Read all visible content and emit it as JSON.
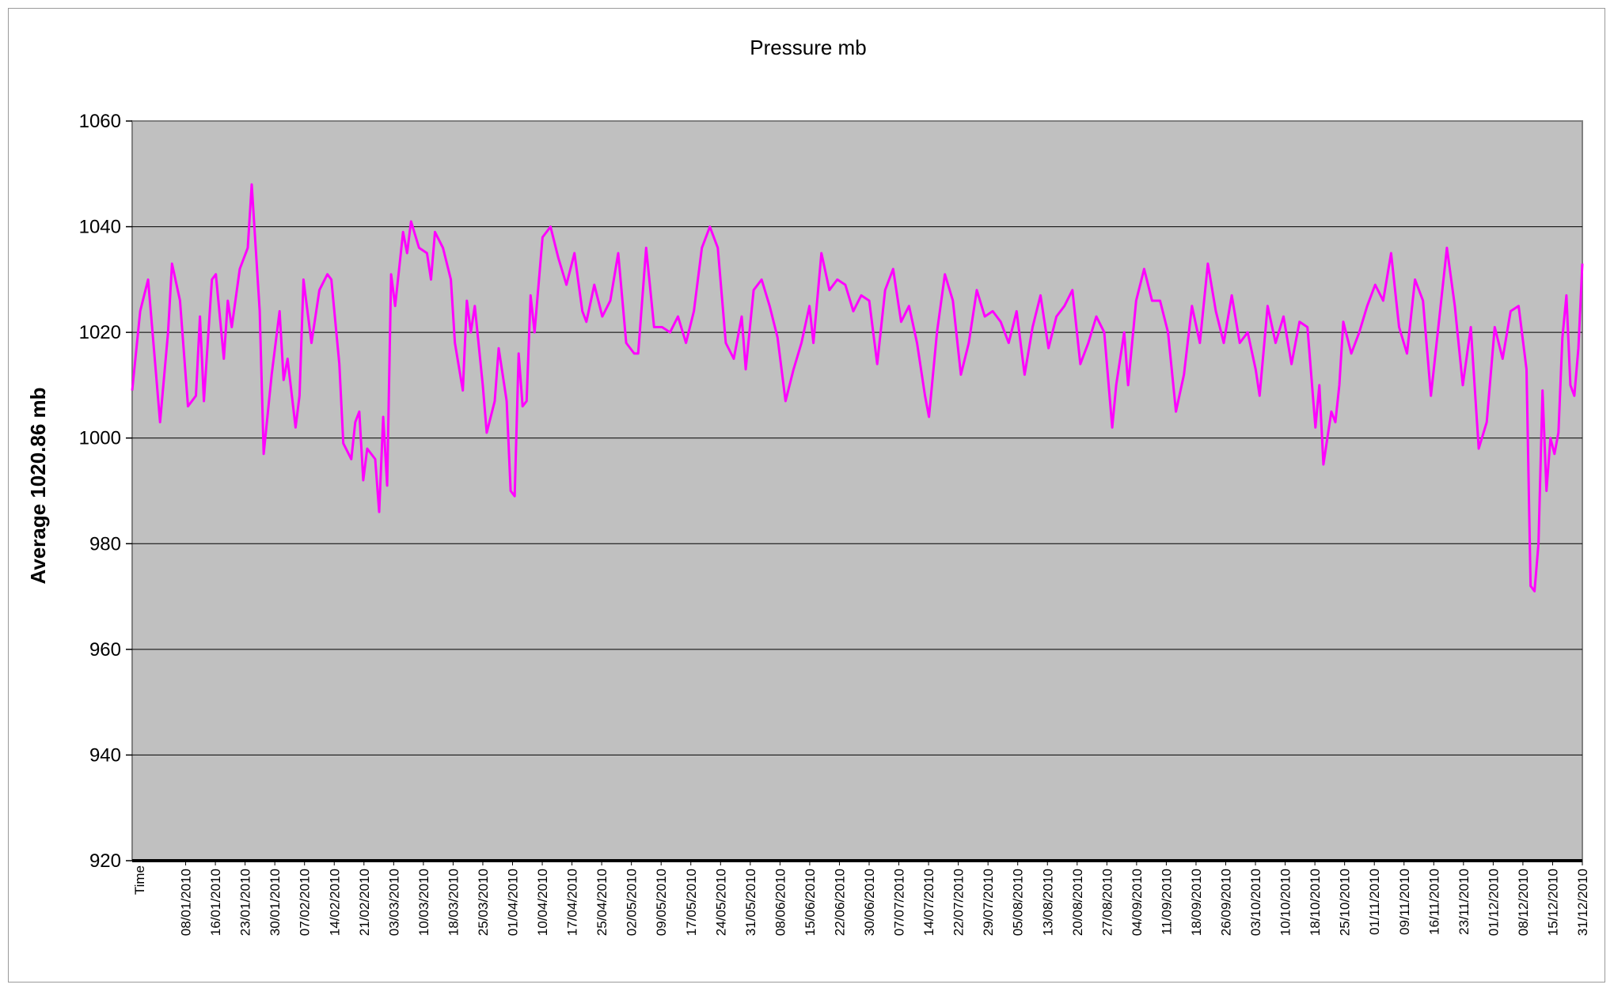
{
  "chart_data": {
    "type": "line",
    "title": "Pressure mb",
    "ylabel": "Average 1020.86 mb",
    "xlabel": "Time",
    "ylim": [
      920,
      1060
    ],
    "yticks": [
      920,
      940,
      960,
      980,
      1000,
      1020,
      1040,
      1060
    ],
    "grid": true,
    "plot_background": "#c0c0c0",
    "line_color": "#ff00ff",
    "x_start": "01/01/2010",
    "x_end": "31/12/2010",
    "xtick_labels": [
      "08/01/2010",
      "16/01/2010",
      "23/01/2010",
      "30/01/2010",
      "07/02/2010",
      "14/02/2010",
      "21/02/2010",
      "03/03/2010",
      "10/03/2010",
      "18/03/2010",
      "25/03/2010",
      "01/04/2010",
      "10/04/2010",
      "17/04/2010",
      "25/04/2010",
      "02/05/2010",
      "09/05/2010",
      "17/05/2010",
      "24/05/2010",
      "31/05/2010",
      "08/06/2010",
      "15/06/2010",
      "22/06/2010",
      "30/06/2010",
      "07/07/2010",
      "14/07/2010",
      "22/07/2010",
      "29/07/2010",
      "05/08/2010",
      "13/08/2010",
      "20/08/2010",
      "27/08/2010",
      "04/09/2010",
      "11/09/2010",
      "18/09/2010",
      "26/09/2010",
      "03/10/2010",
      "10/10/2010",
      "18/10/2010",
      "25/10/2010",
      "01/11/2010",
      "09/11/2010",
      "16/11/2010",
      "23/11/2010",
      "01/12/2010",
      "08/12/2010",
      "15/12/2010",
      "31/12/2010"
    ],
    "series": [
      {
        "values": [
          [
            "01/01/2010",
            1009
          ],
          [
            "03/01/2010",
            1024
          ],
          [
            "05/01/2010",
            1030
          ],
          [
            "07/01/2010",
            1012
          ],
          [
            "08/01/2010",
            1003
          ],
          [
            "10/01/2010",
            1020
          ],
          [
            "11/01/2010",
            1033
          ],
          [
            "13/01/2010",
            1026
          ],
          [
            "15/01/2010",
            1006
          ],
          [
            "17/01/2010",
            1008
          ],
          [
            "18/01/2010",
            1023
          ],
          [
            "19/01/2010",
            1007
          ],
          [
            "21/01/2010",
            1030
          ],
          [
            "22/01/2010",
            1031
          ],
          [
            "24/01/2010",
            1015
          ],
          [
            "25/01/2010",
            1026
          ],
          [
            "26/01/2010",
            1021
          ],
          [
            "28/01/2010",
            1032
          ],
          [
            "30/01/2010",
            1036
          ],
          [
            "31/01/2010",
            1048
          ],
          [
            "02/02/2010",
            1024
          ],
          [
            "03/02/2010",
            997
          ],
          [
            "05/02/2010",
            1012
          ],
          [
            "07/02/2010",
            1024
          ],
          [
            "08/02/2010",
            1011
          ],
          [
            "09/02/2010",
            1015
          ],
          [
            "11/02/2010",
            1002
          ],
          [
            "12/02/2010",
            1008
          ],
          [
            "13/02/2010",
            1030
          ],
          [
            "15/02/2010",
            1018
          ],
          [
            "17/02/2010",
            1028
          ],
          [
            "19/02/2010",
            1031
          ],
          [
            "20/02/2010",
            1030
          ],
          [
            "22/02/2010",
            1014
          ],
          [
            "23/02/2010",
            999
          ],
          [
            "25/02/2010",
            996
          ],
          [
            "26/02/2010",
            1003
          ],
          [
            "27/02/2010",
            1005
          ],
          [
            "28/02/2010",
            992
          ],
          [
            "01/03/2010",
            998
          ],
          [
            "03/03/2010",
            996
          ],
          [
            "04/03/2010",
            986
          ],
          [
            "05/03/2010",
            1004
          ],
          [
            "06/03/2010",
            991
          ],
          [
            "07/03/2010",
            1031
          ],
          [
            "08/03/2010",
            1025
          ],
          [
            "10/03/2010",
            1039
          ],
          [
            "11/03/2010",
            1035
          ],
          [
            "12/03/2010",
            1041
          ],
          [
            "14/03/2010",
            1036
          ],
          [
            "16/03/2010",
            1035
          ],
          [
            "17/03/2010",
            1030
          ],
          [
            "18/03/2010",
            1039
          ],
          [
            "20/03/2010",
            1036
          ],
          [
            "22/03/2010",
            1030
          ],
          [
            "23/03/2010",
            1018
          ],
          [
            "25/03/2010",
            1009
          ],
          [
            "26/03/2010",
            1026
          ],
          [
            "27/03/2010",
            1020
          ],
          [
            "28/03/2010",
            1025
          ],
          [
            "30/03/2010",
            1010
          ],
          [
            "31/03/2010",
            1001
          ],
          [
            "02/04/2010",
            1007
          ],
          [
            "03/04/2010",
            1017
          ],
          [
            "05/04/2010",
            1007
          ],
          [
            "06/04/2010",
            990
          ],
          [
            "07/04/2010",
            989
          ],
          [
            "08/04/2010",
            1016
          ],
          [
            "09/04/2010",
            1006
          ],
          [
            "10/04/2010",
            1007
          ],
          [
            "11/04/2010",
            1027
          ],
          [
            "12/04/2010",
            1020
          ],
          [
            "14/04/2010",
            1038
          ],
          [
            "16/04/2010",
            1040
          ],
          [
            "18/04/2010",
            1034
          ],
          [
            "20/04/2010",
            1029
          ],
          [
            "22/04/2010",
            1035
          ],
          [
            "24/04/2010",
            1024
          ],
          [
            "25/04/2010",
            1022
          ],
          [
            "27/04/2010",
            1029
          ],
          [
            "29/04/2010",
            1023
          ],
          [
            "01/05/2010",
            1026
          ],
          [
            "03/05/2010",
            1035
          ],
          [
            "05/05/2010",
            1018
          ],
          [
            "07/05/2010",
            1016
          ],
          [
            "08/05/2010",
            1016
          ],
          [
            "10/05/2010",
            1036
          ],
          [
            "12/05/2010",
            1021
          ],
          [
            "14/05/2010",
            1021
          ],
          [
            "16/05/2010",
            1020
          ],
          [
            "18/05/2010",
            1023
          ],
          [
            "20/05/2010",
            1018
          ],
          [
            "22/05/2010",
            1024
          ],
          [
            "24/05/2010",
            1036
          ],
          [
            "26/05/2010",
            1040
          ],
          [
            "28/05/2010",
            1036
          ],
          [
            "30/05/2010",
            1018
          ],
          [
            "01/06/2010",
            1015
          ],
          [
            "03/06/2010",
            1023
          ],
          [
            "04/06/2010",
            1013
          ],
          [
            "06/06/2010",
            1028
          ],
          [
            "08/06/2010",
            1030
          ],
          [
            "10/06/2010",
            1025
          ],
          [
            "12/06/2010",
            1019
          ],
          [
            "14/06/2010",
            1007
          ],
          [
            "16/06/2010",
            1013
          ],
          [
            "18/06/2010",
            1018
          ],
          [
            "20/06/2010",
            1025
          ],
          [
            "21/06/2010",
            1018
          ],
          [
            "23/06/2010",
            1035
          ],
          [
            "25/06/2010",
            1028
          ],
          [
            "27/06/2010",
            1030
          ],
          [
            "29/06/2010",
            1029
          ],
          [
            "01/07/2010",
            1024
          ],
          [
            "03/07/2010",
            1027
          ],
          [
            "05/07/2010",
            1026
          ],
          [
            "07/07/2010",
            1014
          ],
          [
            "09/07/2010",
            1028
          ],
          [
            "11/07/2010",
            1032
          ],
          [
            "13/07/2010",
            1022
          ],
          [
            "15/07/2010",
            1025
          ],
          [
            "17/07/2010",
            1018
          ],
          [
            "19/07/2010",
            1008
          ],
          [
            "20/07/2010",
            1004
          ],
          [
            "22/07/2010",
            1020
          ],
          [
            "24/07/2010",
            1031
          ],
          [
            "26/07/2010",
            1026
          ],
          [
            "28/07/2010",
            1012
          ],
          [
            "30/07/2010",
            1018
          ],
          [
            "01/08/2010",
            1028
          ],
          [
            "03/08/2010",
            1023
          ],
          [
            "05/08/2010",
            1024
          ],
          [
            "07/08/2010",
            1022
          ],
          [
            "09/08/2010",
            1018
          ],
          [
            "11/08/2010",
            1024
          ],
          [
            "13/08/2010",
            1012
          ],
          [
            "15/08/2010",
            1021
          ],
          [
            "17/08/2010",
            1027
          ],
          [
            "19/08/2010",
            1017
          ],
          [
            "21/08/2010",
            1023
          ],
          [
            "23/08/2010",
            1025
          ],
          [
            "25/08/2010",
            1028
          ],
          [
            "27/08/2010",
            1014
          ],
          [
            "29/08/2010",
            1018
          ],
          [
            "31/08/2010",
            1023
          ],
          [
            "02/09/2010",
            1020
          ],
          [
            "04/09/2010",
            1002
          ],
          [
            "05/09/2010",
            1010
          ],
          [
            "07/09/2010",
            1020
          ],
          [
            "08/09/2010",
            1010
          ],
          [
            "10/09/2010",
            1026
          ],
          [
            "12/09/2010",
            1032
          ],
          [
            "14/09/2010",
            1026
          ],
          [
            "16/09/2010",
            1026
          ],
          [
            "18/09/2010",
            1020
          ],
          [
            "20/09/2010",
            1005
          ],
          [
            "22/09/2010",
            1012
          ],
          [
            "24/09/2010",
            1025
          ],
          [
            "26/09/2010",
            1018
          ],
          [
            "28/09/2010",
            1033
          ],
          [
            "30/09/2010",
            1024
          ],
          [
            "02/10/2010",
            1018
          ],
          [
            "04/10/2010",
            1027
          ],
          [
            "06/10/2010",
            1018
          ],
          [
            "08/10/2010",
            1020
          ],
          [
            "10/10/2010",
            1013
          ],
          [
            "11/10/2010",
            1008
          ],
          [
            "13/10/2010",
            1025
          ],
          [
            "15/10/2010",
            1018
          ],
          [
            "17/10/2010",
            1023
          ],
          [
            "19/10/2010",
            1014
          ],
          [
            "21/10/2010",
            1022
          ],
          [
            "23/10/2010",
            1021
          ],
          [
            "25/10/2010",
            1002
          ],
          [
            "26/10/2010",
            1010
          ],
          [
            "27/10/2010",
            995
          ],
          [
            "29/10/2010",
            1005
          ],
          [
            "30/10/2010",
            1003
          ],
          [
            "31/10/2010",
            1010
          ],
          [
            "01/11/2010",
            1022
          ],
          [
            "03/11/2010",
            1016
          ],
          [
            "05/11/2010",
            1020
          ],
          [
            "07/11/2010",
            1025
          ],
          [
            "09/11/2010",
            1029
          ],
          [
            "11/11/2010",
            1026
          ],
          [
            "13/11/2010",
            1035
          ],
          [
            "15/11/2010",
            1021
          ],
          [
            "17/11/2010",
            1016
          ],
          [
            "19/11/2010",
            1030
          ],
          [
            "21/11/2010",
            1026
          ],
          [
            "23/11/2010",
            1008
          ],
          [
            "25/11/2010",
            1022
          ],
          [
            "27/11/2010",
            1036
          ],
          [
            "29/11/2010",
            1025
          ],
          [
            "01/12/2010",
            1010
          ],
          [
            "03/12/2010",
            1021
          ],
          [
            "05/12/2010",
            998
          ],
          [
            "07/12/2010",
            1003
          ],
          [
            "09/12/2010",
            1021
          ],
          [
            "11/12/2010",
            1015
          ],
          [
            "13/12/2010",
            1024
          ],
          [
            "15/12/2010",
            1025
          ],
          [
            "17/12/2010",
            1013
          ],
          [
            "18/12/2010",
            972
          ],
          [
            "19/12/2010",
            971
          ],
          [
            "20/12/2010",
            980
          ],
          [
            "21/12/2010",
            1009
          ],
          [
            "22/12/2010",
            990
          ],
          [
            "23/12/2010",
            1000
          ],
          [
            "24/12/2010",
            997
          ],
          [
            "25/12/2010",
            1001
          ],
          [
            "26/12/2010",
            1019
          ],
          [
            "27/12/2010",
            1027
          ],
          [
            "28/12/2010",
            1010
          ],
          [
            "29/12/2010",
            1008
          ],
          [
            "30/12/2010",
            1017
          ],
          [
            "31/12/2010",
            1033
          ]
        ]
      }
    ]
  }
}
